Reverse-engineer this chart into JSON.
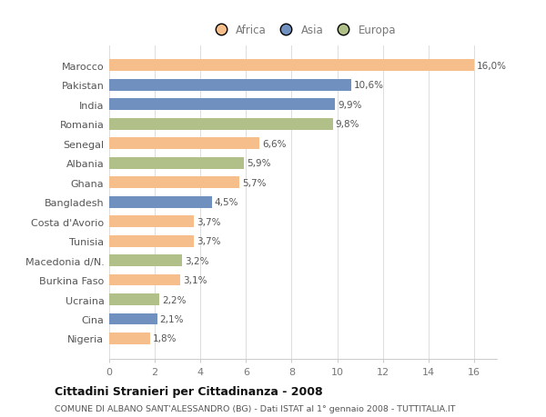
{
  "countries": [
    "Marocco",
    "Pakistan",
    "India",
    "Romania",
    "Senegal",
    "Albania",
    "Ghana",
    "Bangladesh",
    "Costa d'Avorio",
    "Tunisia",
    "Macedonia d/N.",
    "Burkina Faso",
    "Ucraina",
    "Cina",
    "Nigeria"
  ],
  "values": [
    16.0,
    10.6,
    9.9,
    9.8,
    6.6,
    5.9,
    5.7,
    4.5,
    3.7,
    3.7,
    3.2,
    3.1,
    2.2,
    2.1,
    1.8
  ],
  "labels": [
    "16,0%",
    "10,6%",
    "9,9%",
    "9,8%",
    "6,6%",
    "5,9%",
    "5,7%",
    "4,5%",
    "3,7%",
    "3,7%",
    "3,2%",
    "3,1%",
    "2,2%",
    "2,1%",
    "1,8%"
  ],
  "continents": [
    "Africa",
    "Asia",
    "Asia",
    "Europa",
    "Africa",
    "Europa",
    "Africa",
    "Asia",
    "Africa",
    "Africa",
    "Europa",
    "Africa",
    "Europa",
    "Asia",
    "Africa"
  ],
  "colors": {
    "Africa": "#F5BE8A",
    "Asia": "#7090C0",
    "Europa": "#B0C088"
  },
  "xlim": [
    0,
    17
  ],
  "xticks": [
    0,
    2,
    4,
    6,
    8,
    10,
    12,
    14,
    16
  ],
  "title_main": "Cittadini Stranieri per Cittadinanza - 2008",
  "title_sub": "COMUNE DI ALBANO SANT'ALESSANDRO (BG) - Dati ISTAT al 1° gennaio 2008 - TUTTITALIA.IT",
  "background_color": "#FFFFFF",
  "bar_height": 0.6,
  "label_fontsize": 7.5,
  "ytick_fontsize": 8,
  "xtick_fontsize": 8,
  "legend_fontsize": 8.5
}
